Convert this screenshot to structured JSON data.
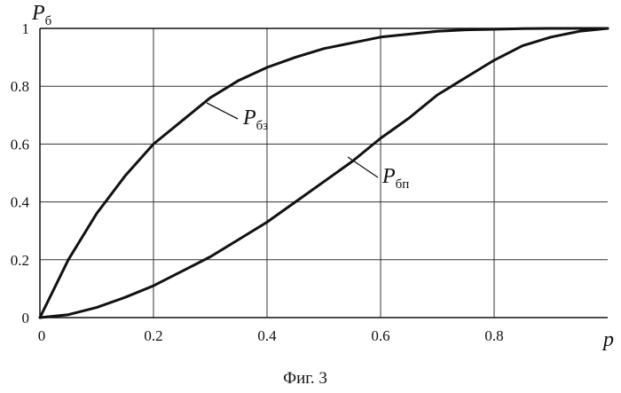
{
  "chart_data": {
    "type": "line",
    "xlabel": "p",
    "ylabel": {
      "main": "P",
      "sub": "б"
    },
    "xlim": [
      0,
      1
    ],
    "ylim": [
      0,
      1
    ],
    "x_ticks": [
      "0",
      "0.2",
      "0.4",
      "0.6",
      "0.8"
    ],
    "y_ticks": [
      "0",
      "0.2",
      "0.4",
      "0.6",
      "0.8",
      "1"
    ],
    "grid": true,
    "series": [
      {
        "name": "Pбз",
        "label_main": "P",
        "label_sub": "бз",
        "x": [
          0,
          0.05,
          0.1,
          0.15,
          0.2,
          0.25,
          0.3,
          0.35,
          0.4,
          0.45,
          0.5,
          0.55,
          0.6,
          0.65,
          0.7,
          0.75,
          0.8,
          0.85,
          0.9,
          0.95,
          1.0
        ],
        "y": [
          0,
          0.2,
          0.36,
          0.49,
          0.6,
          0.68,
          0.76,
          0.82,
          0.865,
          0.9,
          0.93,
          0.95,
          0.97,
          0.98,
          0.99,
          0.995,
          0.997,
          0.999,
          1.0,
          1.0,
          1.0
        ]
      },
      {
        "name": "Pбп",
        "label_main": "P",
        "label_sub": "бп",
        "x": [
          0,
          0.05,
          0.1,
          0.15,
          0.2,
          0.25,
          0.3,
          0.35,
          0.4,
          0.45,
          0.5,
          0.55,
          0.6,
          0.65,
          0.7,
          0.75,
          0.8,
          0.85,
          0.9,
          0.95,
          1.0
        ],
        "y": [
          0,
          0.01,
          0.035,
          0.07,
          0.11,
          0.16,
          0.21,
          0.27,
          0.33,
          0.4,
          0.47,
          0.54,
          0.62,
          0.69,
          0.77,
          0.83,
          0.89,
          0.94,
          0.97,
          0.99,
          1.0
        ]
      }
    ]
  },
  "caption": "Фиг. 3"
}
